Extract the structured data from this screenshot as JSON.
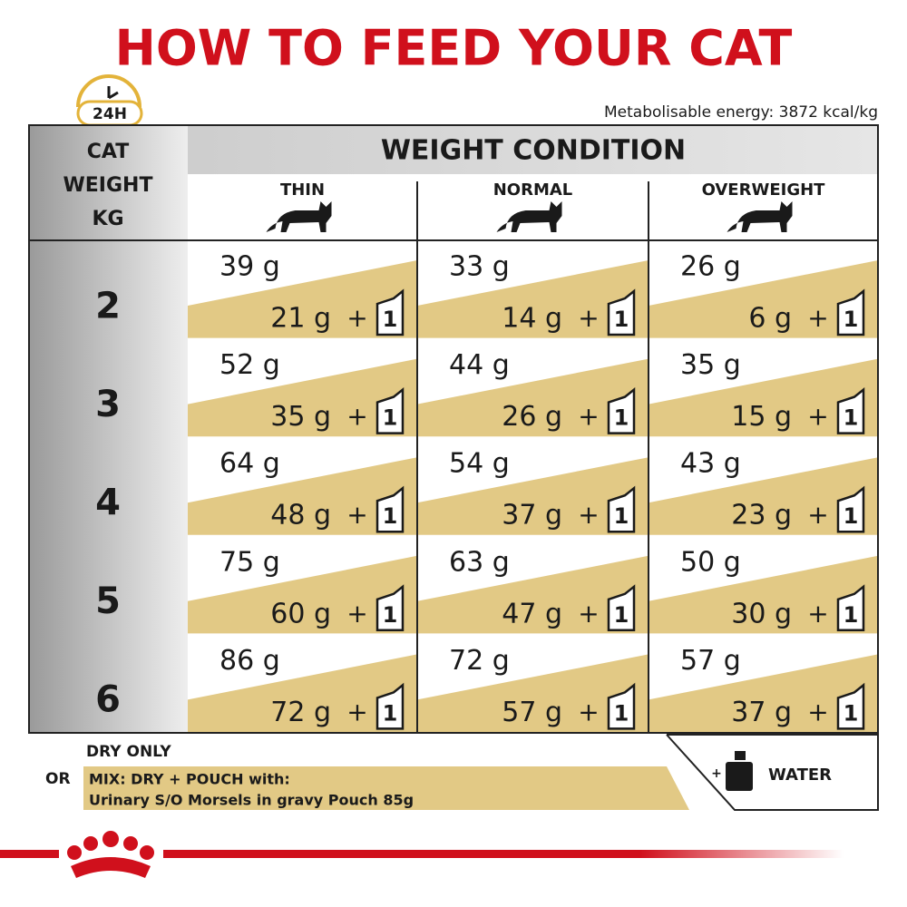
{
  "header": {
    "title": "HOW TO FEED YOUR CAT",
    "clock_label": "24H",
    "energy": "Metabolisable energy: 3872 kcal/kg"
  },
  "table": {
    "weight_heading": [
      "CAT",
      "WEIGHT",
      "KG"
    ],
    "condition_heading": "WEIGHT CONDITION",
    "columns": [
      "THIN",
      "NORMAL",
      "OVERWEIGHT"
    ],
    "separator": "+",
    "pouch_count": "1",
    "rows": [
      {
        "weight": "2",
        "cells": [
          {
            "dry": "39 g",
            "mix": "21 g"
          },
          {
            "dry": "33 g",
            "mix": "14 g"
          },
          {
            "dry": "26 g",
            "mix": "6 g"
          }
        ]
      },
      {
        "weight": "3",
        "cells": [
          {
            "dry": "52 g",
            "mix": "35 g"
          },
          {
            "dry": "44 g",
            "mix": "26 g"
          },
          {
            "dry": "35 g",
            "mix": "15 g"
          }
        ]
      },
      {
        "weight": "4",
        "cells": [
          {
            "dry": "64 g",
            "mix": "48 g"
          },
          {
            "dry": "54 g",
            "mix": "37 g"
          },
          {
            "dry": "43 g",
            "mix": "23 g"
          }
        ]
      },
      {
        "weight": "5",
        "cells": [
          {
            "dry": "75 g",
            "mix": "60 g"
          },
          {
            "dry": "63 g",
            "mix": "47 g"
          },
          {
            "dry": "50 g",
            "mix": "30 g"
          }
        ]
      },
      {
        "weight": "6",
        "cells": [
          {
            "dry": "86 g",
            "mix": "72 g"
          },
          {
            "dry": "72 g",
            "mix": "57 g"
          },
          {
            "dry": "57 g",
            "mix": "37 g"
          }
        ]
      }
    ]
  },
  "legend": {
    "dry_only": "DRY ONLY",
    "or": "OR",
    "mix": "MIX: DRY + POUCH with:",
    "product": "Urinary S/O Morsels in gravy Pouch 85g",
    "water": "WATER"
  }
}
